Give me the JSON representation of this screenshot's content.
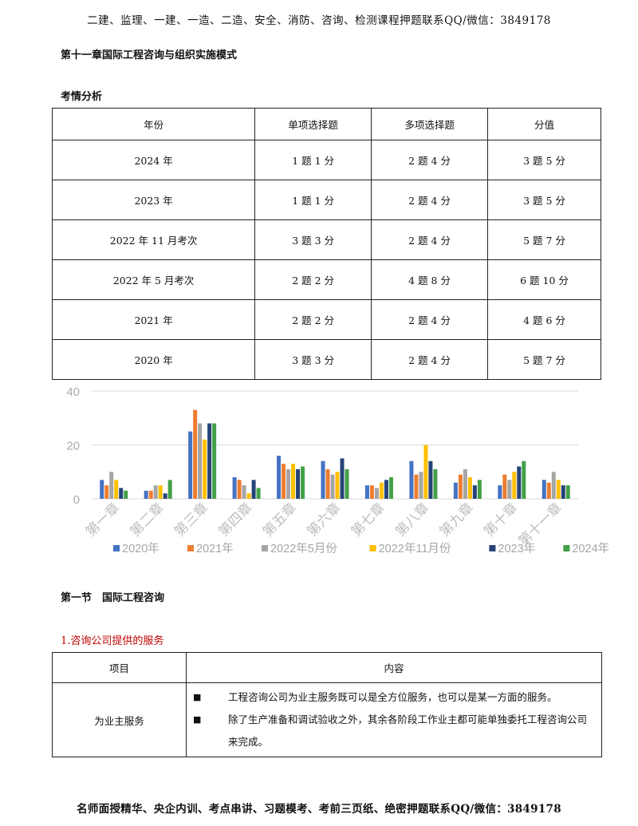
{
  "header": {
    "banner": "二建、监理、一建、一造、二造、安全、消防、咨询、检测课程押题联系QQ/微信：3849178"
  },
  "chapter": {
    "title": "第十一章国际工程咨询与组织实施模式"
  },
  "analysis": {
    "title": "考情分析",
    "columns": [
      "年份",
      "单项选择题",
      "多项选择题",
      "分值"
    ],
    "rows": [
      [
        "2024 年",
        "1 题 1 分",
        "2 题 4 分",
        "3 题 5 分"
      ],
      [
        "2023 年",
        "1 题 1 分",
        "2 题 4 分",
        "3 题 5 分"
      ],
      [
        "2022 年 11 月考次",
        "3 题 3 分",
        "2 题 4 分",
        "5 题 7 分"
      ],
      [
        "2022 年 5 月考次",
        "2 题 2 分",
        "4 题 8 分",
        "6 题 10 分"
      ],
      [
        "2021 年",
        "2 题 2 分",
        "2 题 4 分",
        "4 题 6 分"
      ],
      [
        "2020 年",
        "3 题 3 分",
        "2 题 4 分",
        "5 题 7 分"
      ]
    ]
  },
  "chart_data": {
    "type": "bar",
    "categories": [
      "第一章",
      "第二章",
      "第三章",
      "第四章",
      "第五章",
      "第六章",
      "第七章",
      "第八章",
      "第九章",
      "第十章",
      "第十一章"
    ],
    "ylim": [
      0,
      40
    ],
    "yticks": [
      0,
      20,
      40
    ],
    "grid": true,
    "legend": "bottom",
    "series": [
      {
        "name": "2020年",
        "color": "#4472c4",
        "values": [
          7,
          3,
          25,
          8,
          16,
          14,
          5,
          14,
          6,
          5,
          7
        ]
      },
      {
        "name": "2021年",
        "color": "#ed7d31",
        "values": [
          5,
          3,
          33,
          7,
          13,
          11,
          5,
          9,
          9,
          9,
          6
        ]
      },
      {
        "name": "2022年5月份",
        "color": "#a5a5a5",
        "values": [
          10,
          5,
          28,
          5,
          11,
          9,
          4,
          10,
          11,
          7,
          10
        ]
      },
      {
        "name": "2022年11月份",
        "color": "#ffc000",
        "values": [
          7,
          5,
          22,
          2,
          13,
          10,
          6,
          20,
          8,
          10,
          7
        ]
      },
      {
        "name": "2023年",
        "color": "#264478",
        "values": [
          4,
          2,
          28,
          7,
          11,
          15,
          7,
          14,
          5,
          12,
          5
        ]
      },
      {
        "name": "2024年",
        "color": "#43a047",
        "values": [
          3,
          7,
          28,
          4,
          12,
          11,
          8,
          11,
          7,
          14,
          5
        ]
      }
    ]
  },
  "section": {
    "title": "第一节　国际工程咨询"
  },
  "subsection": {
    "title": "1.咨询公司提供的服务"
  },
  "service_table": {
    "columns": [
      "项目",
      "内容"
    ],
    "item": "为业主服务",
    "bullet_symbol": "■",
    "points": [
      "工程咨询公司为业主服务既可以是全方位服务，也可以是某一方面的服务。",
      "除了生产准备和调试验收之外，其余各阶段工作业主都可能单独委托工程咨询公司来完成。"
    ]
  },
  "footer": {
    "banner": "名师面授精华、央企内训、考点串讲、习题模考、考前三页纸、绝密押题联系QQ/微信：3849178"
  }
}
